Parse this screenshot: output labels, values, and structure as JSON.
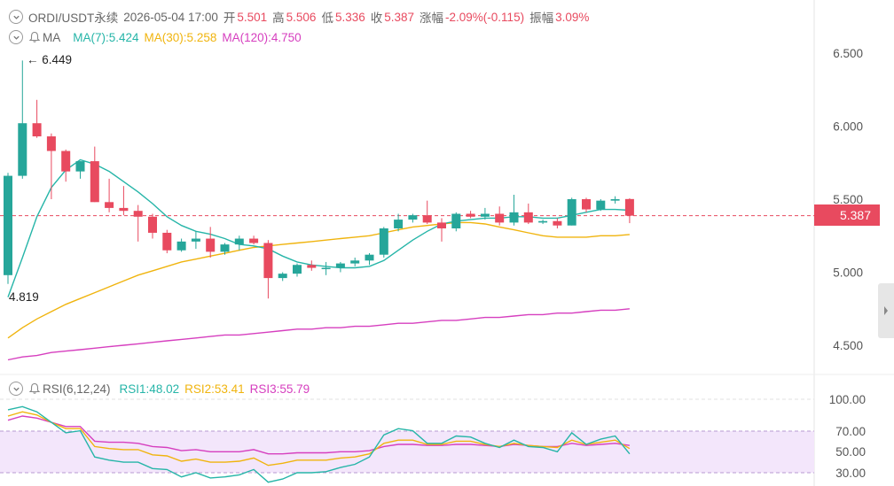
{
  "header": {
    "symbol": "ORDI/USDT永续",
    "datetime": "2026-05-04 17:00",
    "open_label": "开",
    "open": "5.501",
    "high_label": "高",
    "high": "5.506",
    "low_label": "低",
    "low": "5.336",
    "close_label": "收",
    "close": "5.387",
    "change_label": "涨幅",
    "change": "-2.09%(-0.115)",
    "amplitude_label": "振幅",
    "amplitude": "3.09%"
  },
  "ma_indicator": {
    "name": "MA",
    "ma7": "MA(7):5.424",
    "ma30": "MA(30):5.258",
    "ma120": "MA(120):4.750"
  },
  "rsi_indicator": {
    "name": "RSI(6,12,24)",
    "rsi1": "RSI1:48.02",
    "rsi2": "RSI2:53.41",
    "rsi3": "RSI3:55.79"
  },
  "price_axis": [
    "6.500",
    "6.000",
    "5.500",
    "5.000",
    "4.500"
  ],
  "rsi_axis": [
    "100.00",
    "70.00",
    "50.00",
    "30.00"
  ],
  "current_price": "5.387",
  "high_marker": "← 6.449",
  "low_marker": "4.819",
  "colors": {
    "up": "#26a69a",
    "down": "#e84a5f",
    "ma7": "#26b5a8",
    "ma30": "#f0b40e",
    "ma120": "#d63fbf",
    "rsi_band": "#f3e6fb"
  },
  "chart_data": {
    "type": "candlestick",
    "ohlc": [
      [
        4.98,
        5.68,
        4.92,
        5.66
      ],
      [
        5.66,
        6.449,
        5.64,
        6.02
      ],
      [
        6.02,
        6.18,
        5.92,
        5.93
      ],
      [
        5.93,
        5.95,
        5.5,
        5.83
      ],
      [
        5.83,
        5.84,
        5.62,
        5.69
      ],
      [
        5.69,
        5.76,
        5.64,
        5.76
      ],
      [
        5.76,
        5.86,
        5.48,
        5.48
      ],
      [
        5.48,
        5.64,
        5.41,
        5.44
      ],
      [
        5.44,
        5.59,
        5.39,
        5.42
      ],
      [
        5.42,
        5.46,
        5.21,
        5.38
      ],
      [
        5.38,
        5.4,
        5.23,
        5.27
      ],
      [
        5.27,
        5.29,
        5.13,
        5.15
      ],
      [
        5.15,
        5.23,
        5.14,
        5.21
      ],
      [
        5.21,
        5.28,
        5.16,
        5.23
      ],
      [
        5.23,
        5.31,
        5.1,
        5.14
      ],
      [
        5.14,
        5.2,
        5.12,
        5.19
      ],
      [
        5.19,
        5.25,
        5.15,
        5.23
      ],
      [
        5.23,
        5.25,
        5.19,
        5.2
      ],
      [
        5.2,
        5.22,
        4.82,
        4.96
      ],
      [
        4.96,
        5.0,
        4.94,
        4.99
      ],
      [
        4.99,
        5.06,
        4.97,
        5.05
      ],
      [
        5.05,
        5.08,
        5.01,
        5.03
      ],
      [
        5.03,
        5.07,
        4.98,
        5.03
      ],
      [
        5.03,
        5.07,
        5.0,
        5.06
      ],
      [
        5.06,
        5.1,
        5.04,
        5.08
      ],
      [
        5.08,
        5.13,
        5.05,
        5.12
      ],
      [
        5.12,
        5.31,
        5.1,
        5.3
      ],
      [
        5.3,
        5.4,
        5.28,
        5.36
      ],
      [
        5.36,
        5.4,
        5.34,
        5.39
      ],
      [
        5.39,
        5.49,
        5.33,
        5.34
      ],
      [
        5.34,
        5.37,
        5.21,
        5.3
      ],
      [
        5.3,
        5.41,
        5.28,
        5.4
      ],
      [
        5.4,
        5.42,
        5.37,
        5.38
      ],
      [
        5.38,
        5.44,
        5.36,
        5.4
      ],
      [
        5.4,
        5.45,
        5.32,
        5.34
      ],
      [
        5.34,
        5.53,
        5.32,
        5.41
      ],
      [
        5.41,
        5.47,
        5.33,
        5.34
      ],
      [
        5.34,
        5.36,
        5.33,
        5.35
      ],
      [
        5.35,
        5.37,
        5.3,
        5.32
      ],
      [
        5.32,
        5.51,
        5.32,
        5.5
      ],
      [
        5.5,
        5.51,
        5.41,
        5.43
      ],
      [
        5.43,
        5.5,
        5.42,
        5.49
      ],
      [
        5.49,
        5.52,
        5.47,
        5.5
      ],
      [
        5.501,
        5.506,
        5.336,
        5.387
      ]
    ],
    "ma7": [
      4.83,
      5.1,
      5.38,
      5.58,
      5.7,
      5.77,
      5.74,
      5.69,
      5.62,
      5.55,
      5.47,
      5.38,
      5.32,
      5.28,
      5.26,
      5.23,
      5.19,
      5.18,
      5.16,
      5.11,
      5.07,
      5.05,
      5.04,
      5.03,
      5.03,
      5.04,
      5.08,
      5.15,
      5.22,
      5.28,
      5.33,
      5.35,
      5.36,
      5.37,
      5.37,
      5.38,
      5.38,
      5.37,
      5.37,
      5.39,
      5.41,
      5.43,
      5.43,
      5.424
    ],
    "ma30": [
      4.55,
      4.62,
      4.68,
      4.73,
      4.78,
      4.82,
      4.86,
      4.9,
      4.94,
      4.98,
      5.01,
      5.04,
      5.07,
      5.09,
      5.11,
      5.13,
      5.15,
      5.17,
      5.18,
      5.19,
      5.2,
      5.21,
      5.22,
      5.23,
      5.24,
      5.25,
      5.27,
      5.29,
      5.31,
      5.32,
      5.33,
      5.34,
      5.34,
      5.33,
      5.31,
      5.29,
      5.27,
      5.25,
      5.24,
      5.24,
      5.24,
      5.25,
      5.25,
      5.258
    ],
    "ma120": [
      4.4,
      4.42,
      4.43,
      4.45,
      4.46,
      4.47,
      4.48,
      4.49,
      4.5,
      4.51,
      4.52,
      4.53,
      4.54,
      4.55,
      4.56,
      4.57,
      4.57,
      4.58,
      4.59,
      4.6,
      4.61,
      4.61,
      4.62,
      4.62,
      4.63,
      4.63,
      4.64,
      4.65,
      4.65,
      4.66,
      4.67,
      4.67,
      4.68,
      4.69,
      4.69,
      4.7,
      4.71,
      4.71,
      4.72,
      4.72,
      4.73,
      4.74,
      4.74,
      4.75
    ],
    "rsi1": [
      90,
      93,
      88,
      78,
      68,
      70,
      45,
      42,
      40,
      40,
      34,
      33,
      26,
      30,
      25,
      26,
      28,
      33,
      21,
      24,
      30,
      30,
      31,
      35,
      38,
      45,
      66,
      72,
      70,
      58,
      58,
      65,
      64,
      58,
      54,
      61,
      55,
      54,
      50,
      68,
      57,
      62,
      65,
      48
    ],
    "rsi2": [
      84,
      88,
      85,
      78,
      72,
      72,
      55,
      53,
      52,
      52,
      47,
      46,
      41,
      43,
      40,
      40,
      41,
      44,
      37,
      39,
      42,
      42,
      42,
      44,
      45,
      48,
      58,
      61,
      61,
      57,
      57,
      60,
      60,
      57,
      55,
      58,
      56,
      55,
      54,
      61,
      57,
      59,
      61,
      53
    ],
    "rsi3": [
      80,
      84,
      82,
      78,
      74,
      74,
      60,
      59,
      59,
      58,
      55,
      54,
      51,
      52,
      50,
      50,
      50,
      52,
      48,
      48,
      49,
      49,
      49,
      50,
      50,
      51,
      55,
      57,
      57,
      56,
      56,
      57,
      57,
      56,
      55,
      57,
      56,
      55,
      55,
      58,
      56,
      57,
      58,
      56
    ],
    "price_ylim": [
      4.3,
      6.7
    ],
    "rsi_ylim": [
      25,
      100
    ]
  }
}
